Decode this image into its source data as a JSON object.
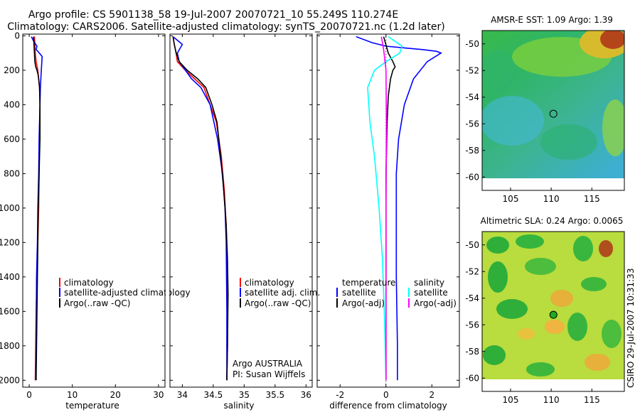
{
  "title_line1": "Argo profile: CS 5901138_58 19-Jul-2007 20070721_10 55.249S 110.274E",
  "title_line2": "Climatology: CARS2006. Satellite-adjusted climatology: synTS_20070721.nc (1.2d later)",
  "side_label": "CSIRO 29-Jul-2007 10:31:33",
  "colors": {
    "climatology": "#ff0000",
    "satellite": "#0000ff",
    "argo": "#000000",
    "satellite_salinity": "#00ffff",
    "argo_adj_salinity": "#ff00ff",
    "map_float_marker_sla": "#22aa22"
  },
  "chart_data": [
    {
      "id": "temperature",
      "type": "line",
      "xlabel": "temperature",
      "ylabel": "",
      "xlim": [
        -1.5,
        31.5
      ],
      "ylim": [
        2040,
        -10
      ],
      "xticks": [
        0,
        10,
        20,
        30
      ],
      "xtick_labels": [
        "0",
        "10",
        "20",
        "30"
      ],
      "yticks": [
        0,
        200,
        400,
        600,
        800,
        1000,
        1200,
        1400,
        1600,
        1800,
        2000
      ],
      "ytick_labels": [
        "0",
        "200",
        "400",
        "600",
        "800",
        "1000",
        "1200",
        "1400",
        "1600",
        "1800",
        "2000"
      ],
      "legend": [
        "climatology",
        "satellite-adjusted climatology",
        "Argo(..raw -QC)"
      ],
      "series": [
        {
          "name": "climatology",
          "color_key": "climatology",
          "x": [
            1.2,
            1.3,
            1.4,
            1.6,
            2.0,
            2.4,
            2.5,
            2.4,
            2.3,
            2.2,
            2.0,
            1.8,
            1.6,
            1.5,
            1.4
          ],
          "y": [
            5,
            50,
            100,
            150,
            200,
            300,
            400,
            600,
            800,
            1000,
            1200,
            1400,
            1600,
            1800,
            2000
          ]
        },
        {
          "name": "satellite-adjusted climatology",
          "color_key": "satellite",
          "x": [
            0.5,
            1.0,
            1.8,
            1.6,
            2.0,
            3.0,
            2.8,
            2.6,
            2.5,
            2.3,
            2.2,
            2.0,
            1.9,
            1.7,
            1.6,
            1.5
          ],
          "y": [
            5,
            30,
            60,
            80,
            90,
            120,
            200,
            300,
            400,
            600,
            800,
            1000,
            1200,
            1400,
            1800,
            2000
          ]
        },
        {
          "name": "Argo(..raw -QC)",
          "color_key": "argo",
          "x": [
            1.0,
            1.1,
            1.2,
            1.3,
            1.5,
            1.8,
            2.1,
            2.4,
            2.5,
            2.5,
            2.3,
            2.1,
            2.0,
            1.9,
            1.8,
            1.7,
            1.6
          ],
          "y": [
            5,
            50,
            100,
            150,
            180,
            200,
            230,
            300,
            400,
            600,
            800,
            1000,
            1200,
            1400,
            1600,
            1800,
            2000
          ]
        }
      ]
    },
    {
      "id": "salinity",
      "type": "line",
      "xlabel": "salinity",
      "ylabel": "",
      "xlim": [
        33.8,
        36.1
      ],
      "ylim": [
        2040,
        -10
      ],
      "xticks": [
        34,
        34.5,
        35,
        35.5,
        36
      ],
      "xtick_labels": [
        "34",
        "34.5",
        "35",
        "35.5",
        "36"
      ],
      "legend": [
        "climatology",
        "satellite adj. clim.",
        "Argo(..raw -QC)"
      ],
      "annotation_line1": "Argo AUSTRALIA",
      "annotation_line2": "PI: Susan Wijffels",
      "series": [
        {
          "name": "climatology",
          "color_key": "climatology",
          "x": [
            33.85,
            33.87,
            33.9,
            33.92,
            34.05,
            34.2,
            34.35,
            34.45,
            34.55,
            34.63,
            34.68,
            34.71,
            34.72,
            34.73,
            34.73,
            34.72
          ],
          "y": [
            5,
            50,
            100,
            150,
            200,
            250,
            300,
            400,
            500,
            700,
            900,
            1100,
            1300,
            1500,
            1800,
            2000
          ]
        },
        {
          "name": "satellite adj. clim.",
          "color_key": "satellite",
          "x": [
            33.85,
            34.0,
            33.92,
            33.95,
            34.05,
            34.15,
            34.3,
            34.45,
            34.57,
            34.65,
            34.69,
            34.71,
            34.72,
            34.72
          ],
          "y": [
            5,
            50,
            100,
            150,
            200,
            250,
            300,
            400,
            600,
            800,
            1000,
            1200,
            1600,
            2000
          ]
        },
        {
          "name": "Argo(..raw -QC)",
          "color_key": "argo",
          "x": [
            33.85,
            33.87,
            33.9,
            33.95,
            34.08,
            34.25,
            34.38,
            34.48,
            34.56,
            34.62,
            34.67,
            34.71,
            34.73,
            34.74,
            34.73,
            34.72
          ],
          "y": [
            5,
            50,
            100,
            150,
            200,
            250,
            300,
            400,
            500,
            700,
            900,
            1100,
            1300,
            1500,
            1800,
            2000
          ]
        }
      ]
    },
    {
      "id": "difference",
      "type": "line",
      "xlabel": "difference from climatology",
      "ylabel": "",
      "xlim": [
        -3,
        3.2
      ],
      "ylim": [
        2040,
        -10
      ],
      "xticks": [
        -2,
        0,
        2
      ],
      "xtick_labels": [
        "-2",
        "0",
        "2"
      ],
      "legend_temperature": [
        "temperature",
        "satellite",
        "Argo(-adj)"
      ],
      "legend_salinity": [
        "salinity",
        "satellite",
        "Argo(-adj)"
      ],
      "series": [
        {
          "name": "temperature satellite",
          "color_key": "satellite",
          "x": [
            -1.3,
            -0.6,
            0.0,
            0.8,
            1.6,
            2.2,
            2.4,
            1.8,
            1.2,
            0.8,
            0.55,
            0.45,
            0.45,
            0.45,
            0.5,
            0.5
          ],
          "y": [
            5,
            40,
            60,
            70,
            80,
            90,
            100,
            150,
            250,
            400,
            600,
            800,
            1000,
            1400,
            1800,
            2000
          ]
        },
        {
          "name": "temperature Argo(-adj)",
          "color_key": "argo",
          "x": [
            -0.1,
            0.1,
            0.3,
            0.4,
            0.3,
            0.2,
            0.1,
            0.05,
            0.0,
            0.0,
            0.0
          ],
          "y": [
            5,
            100,
            150,
            180,
            200,
            250,
            350,
            500,
            800,
            1200,
            2000
          ]
        },
        {
          "name": "salinity satellite",
          "color_key": "satellite_salinity",
          "x": [
            0.1,
            0.7,
            0.6,
            0.0,
            -0.5,
            -0.8,
            -0.7,
            -0.5,
            -0.3,
            -0.15,
            -0.05,
            0.0
          ],
          "y": [
            5,
            60,
            100,
            150,
            200,
            300,
            500,
            700,
            1000,
            1300,
            1700,
            2000
          ]
        },
        {
          "name": "salinity Argo(-adj)",
          "color_key": "argo_adj_salinity",
          "x": [
            -0.2,
            -0.1,
            0.0,
            0.02,
            0.0,
            0.0
          ],
          "y": [
            5,
            80,
            200,
            500,
            1000,
            2000
          ]
        }
      ]
    },
    {
      "id": "sst_map",
      "type": "heatmap",
      "title": "AMSR-E SST: 1.09 Argo: 1.39",
      "xlim": [
        101.5,
        119
      ],
      "ylim": [
        -61,
        -49
      ],
      "xticks": [
        105,
        110,
        115
      ],
      "xtick_labels": [
        "105",
        "110",
        "115"
      ],
      "yticks": [
        -50,
        -52,
        -54,
        -56,
        -58,
        -60
      ],
      "ytick_labels": [
        "-50",
        "-52",
        "-54",
        "-56",
        "-58",
        "-60"
      ],
      "float_lon": 110.274,
      "float_lat": -55.249
    },
    {
      "id": "sla_map",
      "type": "heatmap",
      "title": "Altimetric SLA: 0.24 Argo: 0.0065",
      "xlim": [
        101.5,
        119
      ],
      "ylim": [
        -61,
        -49
      ],
      "xticks": [
        105,
        110,
        115
      ],
      "xtick_labels": [
        "105",
        "110",
        "115"
      ],
      "yticks": [
        -50,
        -52,
        -54,
        -56,
        -58,
        -60
      ],
      "ytick_labels": [
        "-50",
        "-52",
        "-54",
        "-56",
        "-58",
        "-60"
      ],
      "float_lon": 110.274,
      "float_lat": -55.249
    }
  ]
}
